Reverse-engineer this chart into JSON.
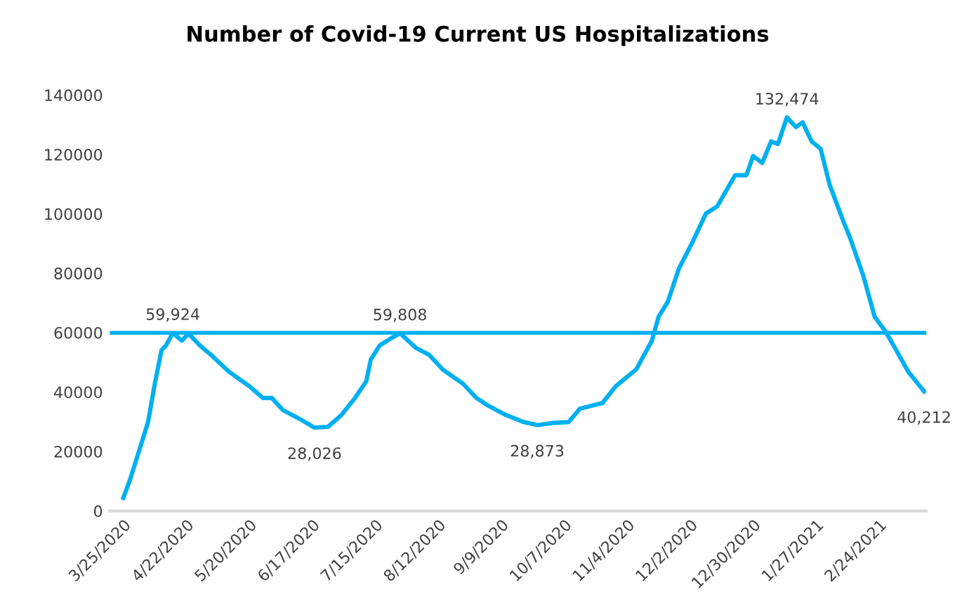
{
  "chart_data": {
    "type": "line",
    "title": "Number of Covid-19 Current US Hospitalizations",
    "x": [
      "2020-03-25",
      "2020-03-28",
      "2020-04-01",
      "2020-04-05",
      "2020-04-08",
      "2020-04-11",
      "2020-04-13",
      "2020-04-15",
      "2020-04-16",
      "2020-04-20",
      "2020-04-23",
      "2020-04-28",
      "2020-05-03",
      "2020-05-11",
      "2020-05-20",
      "2020-05-26",
      "2020-05-30",
      "2020-06-04",
      "2020-06-12",
      "2020-06-18",
      "2020-06-24",
      "2020-06-30",
      "2020-07-06",
      "2020-07-11",
      "2020-07-13",
      "2020-07-17",
      "2020-07-22",
      "2020-07-26",
      "2020-08-02",
      "2020-08-08",
      "2020-08-14",
      "2020-08-23",
      "2020-08-29",
      "2020-09-03",
      "2020-09-11",
      "2020-09-19",
      "2020-09-25",
      "2020-10-02",
      "2020-10-09",
      "2020-10-14",
      "2020-10-24",
      "2020-10-30",
      "2020-11-08",
      "2020-11-15",
      "2020-11-18",
      "2020-11-22",
      "2020-11-27",
      "2020-12-03",
      "2020-12-09",
      "2020-12-14",
      "2020-12-22",
      "2020-12-27",
      "2020-12-30",
      "2021-01-03",
      "2021-01-07",
      "2021-01-10",
      "2021-01-14",
      "2021-01-18",
      "2021-01-21",
      "2021-01-25",
      "2021-01-29",
      "2021-02-02",
      "2021-02-08",
      "2021-02-11",
      "2021-02-17",
      "2021-02-22",
      "2021-02-27",
      "2021-03-03",
      "2021-03-09",
      "2021-03-16"
    ],
    "series": [
      {
        "color": "#00b0f0",
        "values": [
          4400,
          10500,
          20200,
          29900,
          42800,
          54100,
          55700,
          58500,
          59924,
          57300,
          59700,
          55700,
          52500,
          46800,
          42000,
          38000,
          38000,
          33900,
          30700,
          28026,
          28300,
          32300,
          38000,
          43600,
          50900,
          55700,
          58100,
          59808,
          54900,
          52500,
          47600,
          42800,
          38000,
          35500,
          32300,
          29900,
          28873,
          29600,
          29900,
          34400,
          36300,
          42000,
          47600,
          57300,
          65400,
          70300,
          81600,
          90400,
          100100,
          102500,
          113000,
          113000,
          119500,
          117100,
          124400,
          123500,
          132474,
          129200,
          130800,
          124400,
          121900,
          109800,
          97700,
          92100,
          79100,
          65400,
          60200,
          54900,
          46800,
          40212
        ]
      }
    ],
    "xlim": [
      "2020-03-19",
      "2021-03-17"
    ],
    "xticks": [
      {
        "value": "2020-03-25",
        "label": "3/25/2020"
      },
      {
        "value": "2020-04-22",
        "label": "4/22/2020"
      },
      {
        "value": "2020-05-20",
        "label": "5/20/2020"
      },
      {
        "value": "2020-06-17",
        "label": "6/17/2020"
      },
      {
        "value": "2020-07-15",
        "label": "7/15/2020"
      },
      {
        "value": "2020-08-12",
        "label": "8/12/2020"
      },
      {
        "value": "2020-09-09",
        "label": "9/9/2020"
      },
      {
        "value": "2020-10-07",
        "label": "10/7/2020"
      },
      {
        "value": "2020-11-04",
        "label": "11/4/2020"
      },
      {
        "value": "2020-12-02",
        "label": "12/2/2020"
      },
      {
        "value": "2020-12-30",
        "label": "12/30/2020"
      },
      {
        "value": "2021-01-27",
        "label": "1/27/2021"
      },
      {
        "value": "2021-02-24",
        "label": "2/24/2021"
      }
    ],
    "ylim": [
      0,
      140000
    ],
    "yticks": [
      0,
      20000,
      40000,
      60000,
      80000,
      100000,
      120000,
      140000
    ],
    "ref_lines": [
      {
        "axis": "y",
        "value": 59924,
        "color": "#00b0f0"
      }
    ],
    "annotations": [
      {
        "text": "59,924",
        "x": "2020-04-16",
        "y": 59924
      },
      {
        "text": "28,026",
        "x": "2020-06-18",
        "y": 28026
      },
      {
        "text": "59,808",
        "x": "2020-07-26",
        "y": 59808
      },
      {
        "text": "28,873",
        "x": "2020-09-25",
        "y": 28873
      },
      {
        "text": "132,474",
        "x": "2021-01-14",
        "y": 132474
      },
      {
        "text": "40,212",
        "x": "2021-03-16",
        "y": 40212
      }
    ],
    "grid": false,
    "legend": false,
    "marker": "none",
    "line_style": "solid"
  }
}
